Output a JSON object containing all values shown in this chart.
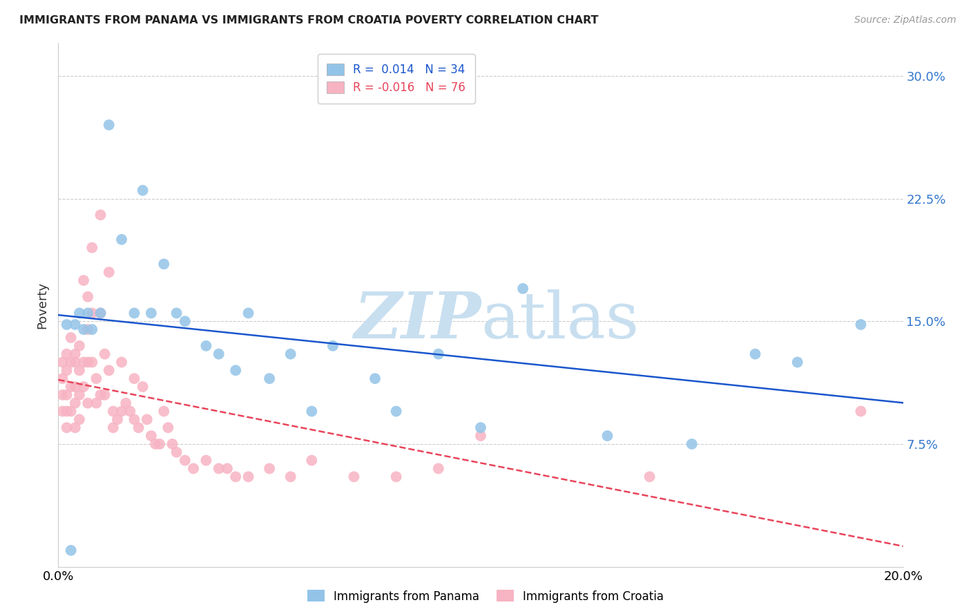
{
  "title": "IMMIGRANTS FROM PANAMA VS IMMIGRANTS FROM CROATIA POVERTY CORRELATION CHART",
  "source": "Source: ZipAtlas.com",
  "ylabel": "Poverty",
  "xlim": [
    0.0,
    0.2
  ],
  "ylim": [
    0.0,
    0.32
  ],
  "panama_R": 0.014,
  "panama_N": 34,
  "croatia_R": -0.016,
  "croatia_N": 76,
  "panama_color": "#93c4e8",
  "croatia_color": "#f7b3c2",
  "trendline_panama_color": "#1a56cc",
  "trendline_croatia_color": "#e8445a",
  "watermark_color": "#c8dff0",
  "background_color": "#ffffff",
  "gridline_color": "#cccccc",
  "panama_x": [
    0.002,
    0.003,
    0.004,
    0.005,
    0.006,
    0.007,
    0.008,
    0.01,
    0.012,
    0.015,
    0.018,
    0.02,
    0.022,
    0.025,
    0.028,
    0.03,
    0.035,
    0.038,
    0.042,
    0.045,
    0.05,
    0.055,
    0.06,
    0.065,
    0.075,
    0.08,
    0.09,
    0.1,
    0.11,
    0.13,
    0.15,
    0.165,
    0.175,
    0.19
  ],
  "panama_y": [
    0.148,
    0.01,
    0.148,
    0.155,
    0.145,
    0.155,
    0.145,
    0.155,
    0.27,
    0.2,
    0.155,
    0.23,
    0.155,
    0.185,
    0.155,
    0.15,
    0.135,
    0.13,
    0.12,
    0.155,
    0.115,
    0.13,
    0.095,
    0.135,
    0.115,
    0.095,
    0.13,
    0.085,
    0.17,
    0.08,
    0.075,
    0.13,
    0.125,
    0.148
  ],
  "croatia_x": [
    0.001,
    0.001,
    0.001,
    0.001,
    0.002,
    0.002,
    0.002,
    0.002,
    0.002,
    0.003,
    0.003,
    0.003,
    0.003,
    0.004,
    0.004,
    0.004,
    0.004,
    0.004,
    0.005,
    0.005,
    0.005,
    0.005,
    0.006,
    0.006,
    0.006,
    0.007,
    0.007,
    0.007,
    0.007,
    0.008,
    0.008,
    0.008,
    0.009,
    0.009,
    0.01,
    0.01,
    0.01,
    0.011,
    0.011,
    0.012,
    0.012,
    0.013,
    0.013,
    0.014,
    0.015,
    0.015,
    0.016,
    0.017,
    0.018,
    0.018,
    0.019,
    0.02,
    0.021,
    0.022,
    0.023,
    0.024,
    0.025,
    0.026,
    0.027,
    0.028,
    0.03,
    0.032,
    0.035,
    0.038,
    0.04,
    0.042,
    0.045,
    0.05,
    0.055,
    0.06,
    0.07,
    0.08,
    0.09,
    0.1,
    0.14,
    0.19
  ],
  "croatia_y": [
    0.125,
    0.115,
    0.105,
    0.095,
    0.13,
    0.12,
    0.105,
    0.095,
    0.085,
    0.14,
    0.125,
    0.11,
    0.095,
    0.13,
    0.125,
    0.11,
    0.1,
    0.085,
    0.135,
    0.12,
    0.105,
    0.09,
    0.175,
    0.125,
    0.11,
    0.165,
    0.145,
    0.125,
    0.1,
    0.195,
    0.155,
    0.125,
    0.115,
    0.1,
    0.215,
    0.155,
    0.105,
    0.13,
    0.105,
    0.18,
    0.12,
    0.095,
    0.085,
    0.09,
    0.125,
    0.095,
    0.1,
    0.095,
    0.115,
    0.09,
    0.085,
    0.11,
    0.09,
    0.08,
    0.075,
    0.075,
    0.095,
    0.085,
    0.075,
    0.07,
    0.065,
    0.06,
    0.065,
    0.06,
    0.06,
    0.055,
    0.055,
    0.06,
    0.055,
    0.065,
    0.055,
    0.055,
    0.06,
    0.08,
    0.055,
    0.095
  ]
}
